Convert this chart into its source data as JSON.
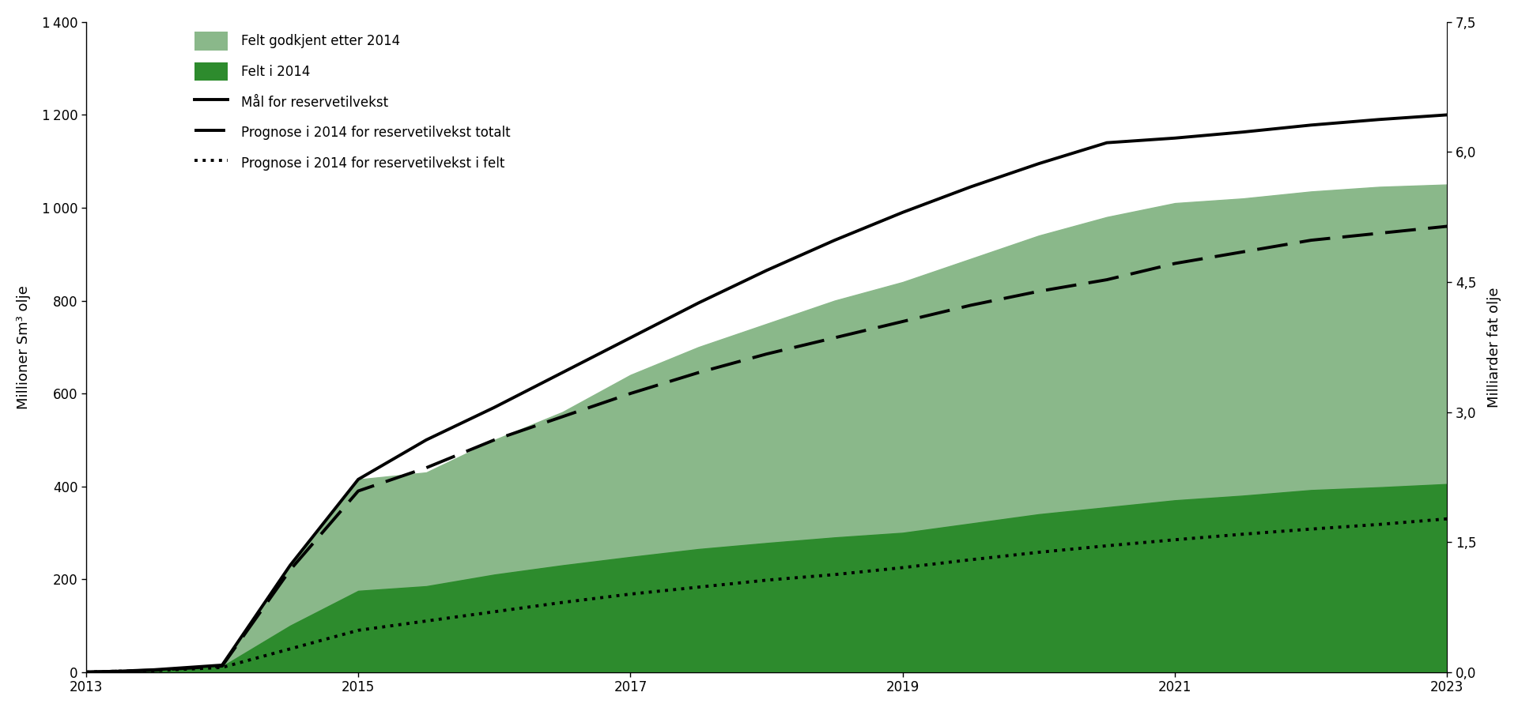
{
  "years": [
    2013,
    2013.25,
    2013.5,
    2014,
    2014.5,
    2015,
    2015.5,
    2016,
    2016.5,
    2017,
    2017.5,
    2018,
    2018.5,
    2019,
    2019.5,
    2020,
    2020.5,
    2021,
    2021.5,
    2022,
    2022.5,
    2023
  ],
  "felt_total": [
    0,
    2,
    5,
    15,
    230,
    415,
    430,
    500,
    560,
    640,
    700,
    750,
    800,
    840,
    890,
    940,
    980,
    1010,
    1020,
    1035,
    1045,
    1050
  ],
  "felt_i_2014": [
    0,
    2,
    4,
    12,
    100,
    175,
    185,
    210,
    230,
    248,
    265,
    278,
    290,
    300,
    320,
    340,
    355,
    370,
    380,
    392,
    398,
    405
  ],
  "mal_line": [
    0,
    2,
    5,
    15,
    230,
    415,
    500,
    570,
    645,
    720,
    795,
    865,
    930,
    990,
    1045,
    1095,
    1140,
    1150,
    1163,
    1178,
    1190,
    1200
  ],
  "prognose_total": [
    0,
    2,
    4,
    13,
    220,
    390,
    440,
    500,
    550,
    600,
    645,
    685,
    720,
    755,
    790,
    820,
    845,
    880,
    905,
    930,
    945,
    960
  ],
  "prognose_felt": [
    0,
    2,
    3,
    10,
    50,
    90,
    110,
    130,
    150,
    168,
    183,
    198,
    210,
    225,
    242,
    258,
    272,
    285,
    297,
    308,
    318,
    330
  ],
  "color_light_green": "#8ab88a",
  "color_dark_green": "#2d8b2d",
  "ylabel_left": "Millioner Sm³ olje",
  "ylabel_right": "Milliarder fat olje",
  "ylim_left": [
    0,
    1400
  ],
  "ylim_right": [
    0.0,
    7.5
  ],
  "yticks_left": [
    0,
    200,
    400,
    600,
    800,
    1000,
    1200,
    1400
  ],
  "yticks_right": [
    0.0,
    1.5,
    3.0,
    4.5,
    6.0,
    7.5
  ],
  "xticks": [
    2013,
    2015,
    2017,
    2019,
    2021,
    2023
  ],
  "legend_labels": [
    "Felt godkjent etter 2014",
    "Felt i 2014",
    "Mål for reservetilvekst",
    "Prognose i 2014 for reservetilvekst totalt",
    "Prognose i 2014 for reservetilvekst i felt"
  ],
  "background_color": "#ffffff",
  "line_color": "#000000",
  "linewidth_solid": 2.8,
  "linewidth_dashed": 2.8,
  "linewidth_dotted": 2.8
}
